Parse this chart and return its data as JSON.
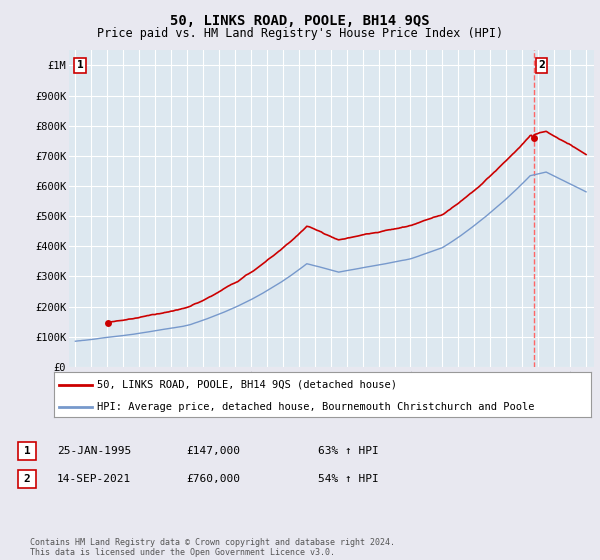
{
  "title": "50, LINKS ROAD, POOLE, BH14 9QS",
  "subtitle": "Price paid vs. HM Land Registry's House Price Index (HPI)",
  "property_label": "50, LINKS ROAD, POOLE, BH14 9QS (detached house)",
  "hpi_label": "HPI: Average price, detached house, Bournemouth Christchurch and Poole",
  "property_color": "#cc0000",
  "hpi_color": "#7799cc",
  "vline_color": "#ff6666",
  "annotation1_label": "1",
  "annotation1_date": "25-JAN-1995",
  "annotation1_price": "£147,000",
  "annotation1_pct": "63% ↑ HPI",
  "annotation2_label": "2",
  "annotation2_date": "14-SEP-2021",
  "annotation2_price": "£760,000",
  "annotation2_pct": "54% ↑ HPI",
  "footer": "Contains HM Land Registry data © Crown copyright and database right 2024.\nThis data is licensed under the Open Government Licence v3.0.",
  "ylim": [
    0,
    1050000
  ],
  "yticks": [
    0,
    100000,
    200000,
    300000,
    400000,
    500000,
    600000,
    700000,
    800000,
    900000,
    1000000
  ],
  "ytick_labels": [
    "£0",
    "£100K",
    "£200K",
    "£300K",
    "£400K",
    "£500K",
    "£600K",
    "£700K",
    "£800K",
    "£900K",
    "£1M"
  ],
  "background_color": "#e8e8f0",
  "plot_bg_color": "#dde8f0",
  "grid_color": "#ffffff",
  "t1": 1995.07,
  "t2": 2021.71,
  "price1": 147000,
  "price2": 760000
}
